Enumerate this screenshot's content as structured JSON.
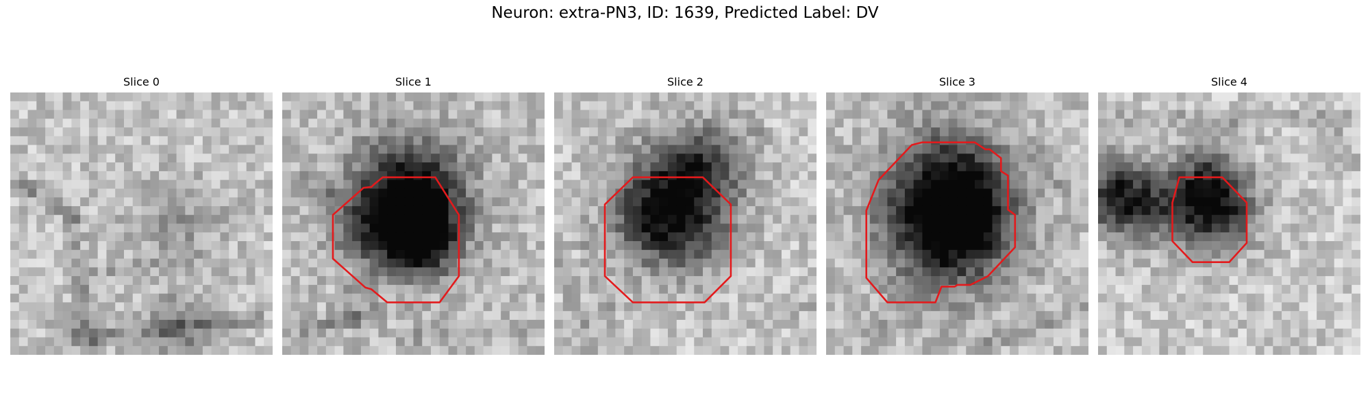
{
  "figure": {
    "title": "Neuron: extra-PN3, ID: 1639, Predicted Label: DV"
  },
  "panels": [
    {
      "title": "Slice 0",
      "has_contour": false,
      "contour_color": "#e31a1c",
      "image": "grayscale-microscopy-crop"
    },
    {
      "title": "Slice 1",
      "has_contour": true,
      "contour_color": "#e31a1c",
      "image": "grayscale-microscopy-crop"
    },
    {
      "title": "Slice 2",
      "has_contour": true,
      "contour_color": "#e31a1c",
      "image": "grayscale-microscopy-crop"
    },
    {
      "title": "Slice 3",
      "has_contour": true,
      "contour_color": "#e31a1c",
      "image": "grayscale-microscopy-crop"
    },
    {
      "title": "Slice 4",
      "has_contour": true,
      "contour_color": "#e31a1c",
      "image": "grayscale-microscopy-crop"
    }
  ]
}
